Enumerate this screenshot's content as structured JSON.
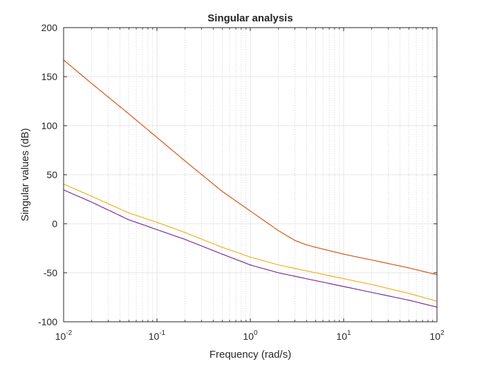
{
  "chart_data": {
    "type": "line",
    "title": "Singular analysis",
    "xlabel": "Frequency (rad/s)",
    "ylabel": "Singular values (dB)",
    "xscale": "log",
    "xlim": [
      0.01,
      100
    ],
    "ylim": [
      -100,
      200
    ],
    "grid": "on",
    "minor_grid": "on",
    "x_ticks": [
      {
        "base": "10",
        "exp": "-2",
        "value": 0.01
      },
      {
        "base": "10",
        "exp": "-1",
        "value": 0.1
      },
      {
        "base": "10",
        "exp": "0",
        "value": 1
      },
      {
        "base": "10",
        "exp": "1",
        "value": 10
      },
      {
        "base": "10",
        "exp": "2",
        "value": 100
      }
    ],
    "y_ticks": [
      {
        "label": "200",
        "value": 200
      },
      {
        "label": "150",
        "value": 150
      },
      {
        "label": "100",
        "value": 100
      },
      {
        "label": "50",
        "value": 50
      },
      {
        "label": "0",
        "value": 0
      },
      {
        "label": "-50",
        "value": -50
      },
      {
        "label": "-100",
        "value": -100
      }
    ],
    "series": [
      {
        "color": "#d95319",
        "x": [
          0.01,
          0.02,
          0.05,
          0.1,
          0.2,
          0.5,
          1,
          2,
          3,
          4,
          5,
          10,
          20,
          50,
          100
        ],
        "y": [
          167,
          143,
          112,
          88,
          64,
          33,
          13,
          -7,
          -17,
          -21.5,
          -24,
          -31,
          -37,
          -45,
          -52
        ]
      },
      {
        "color": "#edb120",
        "x": [
          0.01,
          0.02,
          0.05,
          0.1,
          0.2,
          0.5,
          1,
          2,
          5,
          10,
          20,
          50,
          100
        ],
        "y": [
          40.5,
          28,
          11,
          1.5,
          -9,
          -24,
          -34,
          -42,
          -50,
          -56,
          -62,
          -71,
          -79
        ]
      },
      {
        "color": "#7e2f8e",
        "x": [
          0.01,
          0.02,
          0.05,
          0.1,
          0.2,
          0.5,
          1,
          2,
          5,
          10,
          20,
          50,
          100
        ],
        "y": [
          34.5,
          22,
          4,
          -6,
          -16,
          -31,
          -42,
          -50,
          -58,
          -64,
          -70,
          -78,
          -85
        ]
      }
    ]
  }
}
